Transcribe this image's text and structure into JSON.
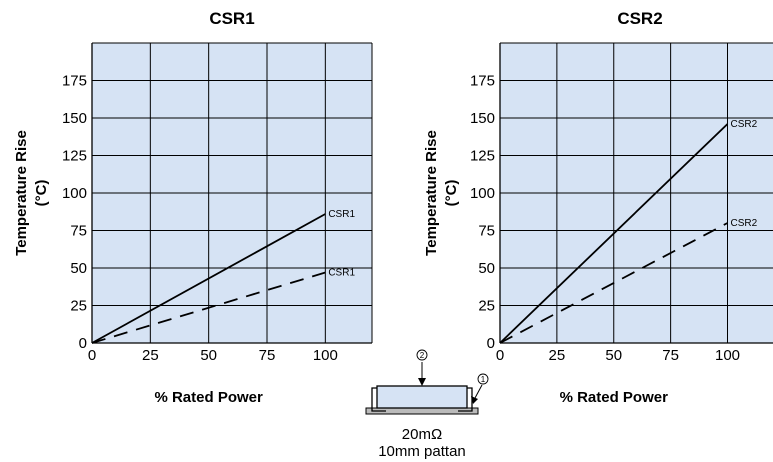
{
  "chart_data": [
    {
      "type": "line",
      "title": "CSR1",
      "xlabel": "% Rated Power",
      "ylabel": "Temperature Rise",
      "ylabel_unit": "(°C)",
      "xlim": [
        0,
        120
      ],
      "ylim": [
        0,
        200
      ],
      "xticks": [
        "0",
        "25",
        "50",
        "75",
        "100"
      ],
      "yticks": [
        "0",
        "25",
        "50",
        "75",
        "100",
        "125",
        "150",
        "175"
      ],
      "grid": true,
      "background_color": "#d6e3f4",
      "series": [
        {
          "name": "CSR1",
          "style": "solid",
          "x": [
            0,
            100
          ],
          "y": [
            0,
            86
          ]
        },
        {
          "name": "CSR1",
          "style": "dashed",
          "x": [
            0,
            100
          ],
          "y": [
            0,
            47
          ]
        }
      ]
    },
    {
      "type": "line",
      "title": "CSR2",
      "xlabel": "% Rated Power",
      "ylabel": "Temperature Rise",
      "ylabel_unit": "(°C)",
      "xlim": [
        0,
        120
      ],
      "ylim": [
        0,
        200
      ],
      "xticks": [
        "0",
        "25",
        "50",
        "75",
        "100"
      ],
      "yticks": [
        "0",
        "25",
        "50",
        "75",
        "100",
        "125",
        "150",
        "175"
      ],
      "grid": true,
      "background_color": "#d6e3f4",
      "series": [
        {
          "name": "CSR2",
          "style": "solid",
          "x": [
            0,
            100
          ],
          "y": [
            0,
            146
          ]
        },
        {
          "name": "CSR2",
          "style": "dashed",
          "x": [
            0,
            100
          ],
          "y": [
            0,
            80
          ]
        }
      ]
    }
  ],
  "diagram": {
    "marker_top": "2",
    "marker_right": "1",
    "resistance": "20mΩ",
    "pattern": "10mm pattan"
  }
}
